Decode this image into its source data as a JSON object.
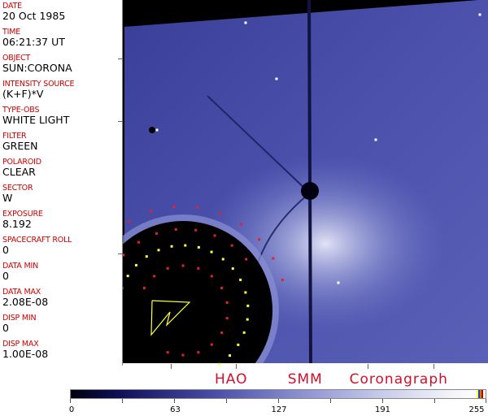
{
  "header_fields": [
    {
      "label": "DATE",
      "value": "20 Oct 1985"
    },
    {
      "label": "TIME",
      "value": "06:21:37 UT"
    },
    {
      "label": "OBJECT",
      "value": "SUN:CORONA"
    },
    {
      "label": "INTENSITY SOURCE",
      "value": "(K+F)*V"
    },
    {
      "label": "TYPE-OBS",
      "value": "WHITE LIGHT"
    },
    {
      "label": "FILTER",
      "value": "GREEN"
    },
    {
      "label": "POLAROID",
      "value": "CLEAR"
    },
    {
      "label": "SECTOR",
      "value": "W"
    },
    {
      "label": "EXPOSURE",
      "value": "8.192"
    },
    {
      "label": "SPACECRAFT ROLL",
      "value": "0"
    },
    {
      "label": "DATA MIN",
      "value": "0"
    },
    {
      "label": "DATA MAX",
      "value": "2.08E-08"
    },
    {
      "label": "DISP MIN",
      "value": "0"
    },
    {
      "label": "DISP MAX",
      "value": "1.00E-08"
    }
  ],
  "title": "HAO   SMM  Coronagraph",
  "colorbar": {
    "ticks": [
      "0",
      "63",
      "127",
      "191",
      "255"
    ],
    "min": 0,
    "max": 255,
    "end_colors": [
      "#ffff40",
      "#2040c0",
      "#c08000",
      "#c00000"
    ]
  },
  "colors": {
    "label": "#cc0000",
    "image_blue": "#4a4ea8",
    "markers_red": "#e0203a",
    "markers_yellow": "#ffff40"
  }
}
